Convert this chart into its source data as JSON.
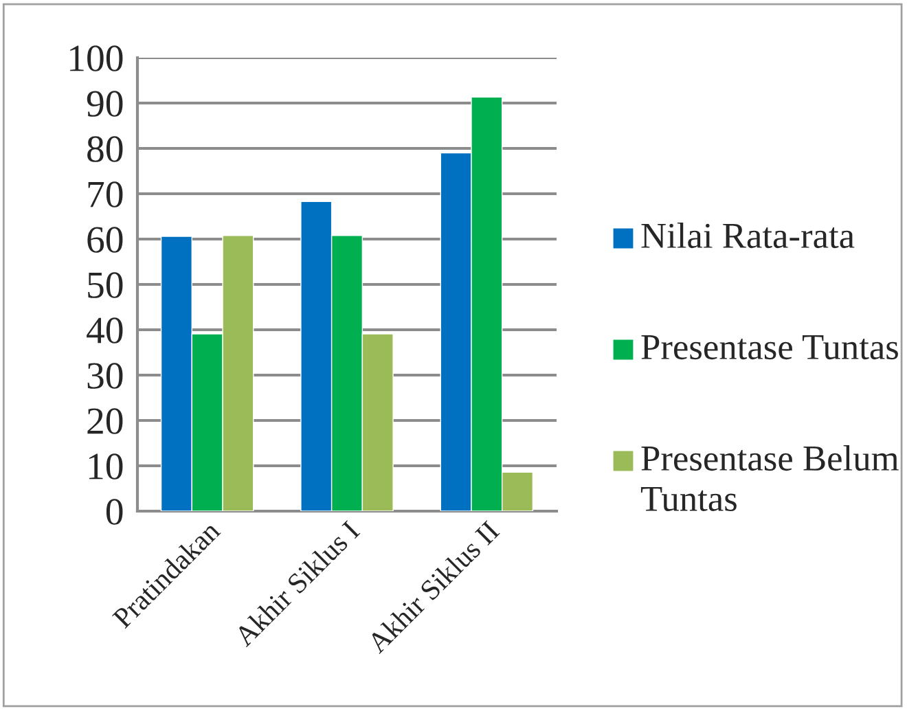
{
  "chart_data": {
    "type": "bar",
    "categories": [
      "Pratindakan",
      "Akhir Siklus I",
      "Akhir Siklus II"
    ],
    "series": [
      {
        "name": "Nilai Rata-rata",
        "color": "#0070c0",
        "values": [
          60.6,
          68.3,
          79.0
        ]
      },
      {
        "name": "Presentase Tuntas",
        "color": "#00b050",
        "values": [
          39.1,
          60.8,
          91.3
        ]
      },
      {
        "name": "Presentase Belum Tuntas",
        "color": "#9bbb59",
        "values": [
          60.8,
          39.1,
          8.6
        ]
      }
    ],
    "ylim": [
      0,
      100
    ],
    "yticks": [
      0,
      10,
      20,
      30,
      40,
      50,
      60,
      70,
      80,
      90,
      100
    ],
    "grid": "y",
    "legend": "right"
  }
}
